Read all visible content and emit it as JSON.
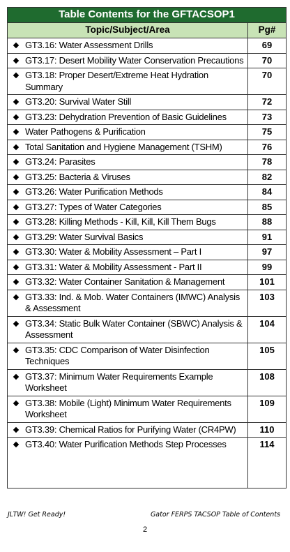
{
  "header": {
    "title": "Table Contents for the GFTACSOP1"
  },
  "table": {
    "columns": [
      "Topic/Subject/Area",
      "Pg#"
    ],
    "rows": [
      [
        "GT3.16: Water Assessment Drills",
        69
      ],
      [
        "GT3.17: Desert Mobility Water Conservation Precautions",
        70
      ],
      [
        "GT3.18: Proper Desert/Extreme Heat Hydration Summary",
        70
      ],
      [
        "GT3.20: Survival Water Still",
        72
      ],
      [
        "GT3.23: Dehydration Prevention of Basic Guidelines",
        73
      ],
      [
        "Water Pathogens & Purification",
        75
      ],
      [
        "Total Sanitation and Hygiene Management (TSHM)",
        76
      ],
      [
        "GT3.24: Parasites",
        78
      ],
      [
        "GT3.25: Bacteria & Viruses",
        82
      ],
      [
        "GT3.26: Water Purification Methods",
        84
      ],
      [
        "GT3.27: Types of Water Categories",
        85
      ],
      [
        "GT3.28: Killing Methods - Kill, Kill, Kill Them Bugs",
        88
      ],
      [
        "GT3.29: Water Survival Basics",
        91
      ],
      [
        "GT3.30: Water & Mobility Assessment – Part I",
        97
      ],
      [
        "GT3.31: Water & Mobility Assessment - Part II",
        99
      ],
      [
        "GT3.32: Water Container Sanitation & Management",
        101
      ],
      [
        "GT3.33: Ind. & Mob. Water Containers (IMWC) Analysis & Assessment",
        103
      ],
      [
        "GT3.34: Static Bulk Water Container (SBWC) Analysis & Assessment",
        104
      ],
      [
        "GT3.35: CDC Comparison of Water Disinfection Techniques",
        105
      ],
      [
        "GT3.37: Minimum Water Requirements Example Worksheet",
        108
      ],
      [
        "GT3.38: Mobile (Light) Minimum Water Requirements Worksheet",
        109
      ],
      [
        "GT3.39: Chemical Ratios for Purifying Water (CR4PW)",
        110
      ],
      [
        "GT3.40: Water Purification Methods Step Processes",
        114
      ]
    ]
  },
  "footer": {
    "left": "JLTW! Get Ready!",
    "right": "Gator FERPS TACSOP Table of Contents"
  },
  "page_number": "2"
}
